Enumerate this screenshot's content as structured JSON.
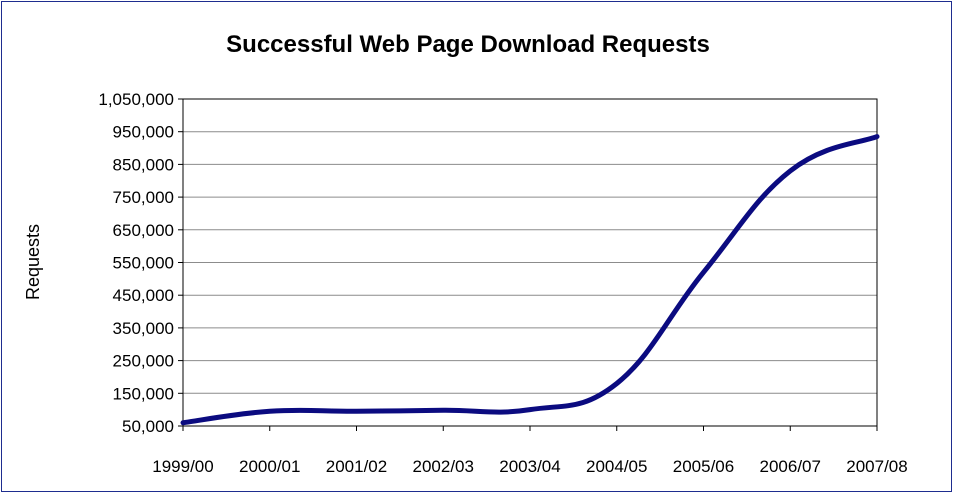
{
  "chart_data": {
    "type": "line",
    "title": "Successful Web Page Download Requests",
    "xlabel": "",
    "ylabel": "Requests",
    "categories": [
      "1999/00",
      "2000/01",
      "2001/02",
      "2002/03",
      "2003/04",
      "2004/05",
      "2005/06",
      "2006/07",
      "2007/08"
    ],
    "y_ticks": [
      50000,
      150000,
      250000,
      350000,
      450000,
      550000,
      650000,
      750000,
      850000,
      950000,
      1050000
    ],
    "y_tick_labels": [
      "50,000",
      "150,000",
      "250,000",
      "350,000",
      "450,000",
      "550,000",
      "650,000",
      "750,000",
      "850,000",
      "950,000",
      "1,050,000"
    ],
    "ylim": [
      50000,
      1050000
    ],
    "grid": true,
    "legend": "none",
    "series": [
      {
        "values": [
          60000,
          95000,
          95000,
          98000,
          100000,
          180000,
          520000,
          830000,
          935000
        ],
        "color": "#0b0b80"
      }
    ]
  }
}
